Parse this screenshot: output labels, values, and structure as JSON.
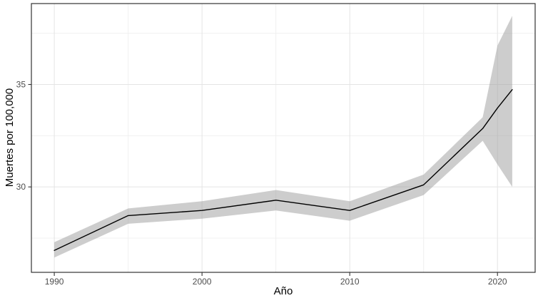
{
  "chart_data": {
    "type": "line",
    "title": "",
    "xlabel": "Año",
    "ylabel": "Muertes por 100,000",
    "x": [
      1990,
      1995,
      2000,
      2005,
      2010,
      2015,
      2019,
      2020,
      2021
    ],
    "series": [
      {
        "name": "estimate",
        "values": [
          26.9,
          28.6,
          28.85,
          29.35,
          28.85,
          30.1,
          32.85,
          33.85,
          34.75
        ]
      },
      {
        "name": "ci_lower",
        "values": [
          26.55,
          28.2,
          28.45,
          28.85,
          28.35,
          29.6,
          32.25,
          31.1,
          30.0
        ]
      },
      {
        "name": "ci_upper",
        "values": [
          27.3,
          28.95,
          29.3,
          29.85,
          29.3,
          30.6,
          33.4,
          36.9,
          38.35
        ]
      }
    ],
    "x_ticks": [
      1990,
      2000,
      2010,
      2020
    ],
    "x_tick_labels": [
      "1990",
      "2000",
      "2010",
      "2020"
    ],
    "x_minor_ticks": [
      1995,
      2005,
      2015
    ],
    "y_ticks": [
      30,
      35
    ],
    "y_tick_labels": [
      "30",
      "35"
    ],
    "y_minor_ticks": [
      27.5,
      32.5,
      37.5
    ],
    "x_range": [
      1988.45,
      2022.55
    ],
    "y_range": [
      25.83,
      38.95
    ],
    "grid": true,
    "legend": "none",
    "colors": {
      "line": "#000000",
      "band": "#a0a0a0",
      "band_opacity": 0.52,
      "grid_major": "#e4e4e4",
      "grid_minor": "#f0f0f0",
      "panel_border": "#333333",
      "tick_mark": "#333333",
      "tick_label": "#4d4d4d",
      "axis_title": "#000000",
      "background": "#ffffff"
    }
  }
}
